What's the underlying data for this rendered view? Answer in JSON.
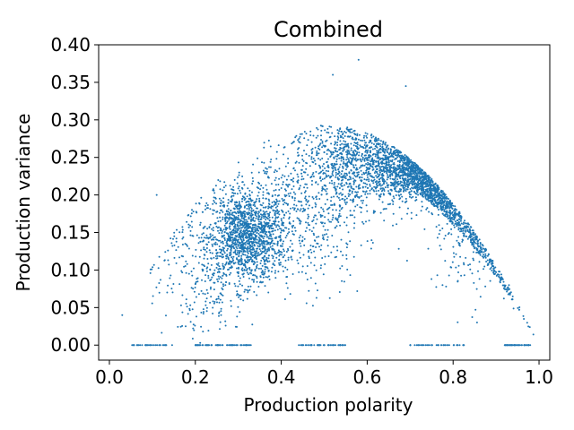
{
  "chart_data": {
    "type": "scatter",
    "title": "Combined",
    "xlabel": "Production polarity",
    "ylabel": "Production variance",
    "xlim": [
      -0.025,
      1.025
    ],
    "ylim": [
      -0.02,
      0.4
    ],
    "xticks": [
      "0.0",
      "0.2",
      "0.4",
      "0.6",
      "0.8",
      "1.0"
    ],
    "xtick_values": [
      0.0,
      0.2,
      0.4,
      0.6,
      0.8,
      1.0
    ],
    "yticks": [
      "0.00",
      "0.05",
      "0.10",
      "0.15",
      "0.20",
      "0.25",
      "0.30",
      "0.35",
      "0.40"
    ],
    "ytick_values": [
      0.0,
      0.05,
      0.1,
      0.15,
      0.2,
      0.25,
      0.3,
      0.35,
      0.4
    ],
    "marker_color": "#1f77b4",
    "grid": false,
    "legend": "none",
    "clusters": [
      {
        "center": [
          0.32,
          0.145
        ],
        "spread": [
          0.045,
          0.03
        ],
        "count": 1400
      },
      {
        "center": [
          0.72,
          0.235
        ],
        "spread": [
          0.05,
          0.02
        ],
        "count": 1300
      },
      {
        "center": [
          0.58,
          0.245
        ],
        "spread": [
          0.06,
          0.03
        ],
        "count": 900
      },
      {
        "center": [
          0.45,
          0.18
        ],
        "spread": [
          0.08,
          0.05
        ],
        "count": 600
      },
      {
        "center": [
          0.85,
          0.17
        ],
        "spread": [
          0.05,
          0.05
        ],
        "count": 350
      },
      {
        "center": [
          0.22,
          0.1
        ],
        "spread": [
          0.06,
          0.05
        ],
        "count": 300
      }
    ],
    "envelope": "y <= x*(1-x)*1.18",
    "zero_variance_points": {
      "y": 0.0,
      "x_range": [
        0.05,
        0.98
      ],
      "count": 260
    },
    "outliers": [
      {
        "x": 0.58,
        "y": 0.38
      },
      {
        "x": 0.52,
        "y": 0.36
      },
      {
        "x": 0.69,
        "y": 0.345
      },
      {
        "x": 0.11,
        "y": 0.2
      },
      {
        "x": 0.03,
        "y": 0.04
      },
      {
        "x": 0.93,
        "y": 0.08
      }
    ]
  }
}
